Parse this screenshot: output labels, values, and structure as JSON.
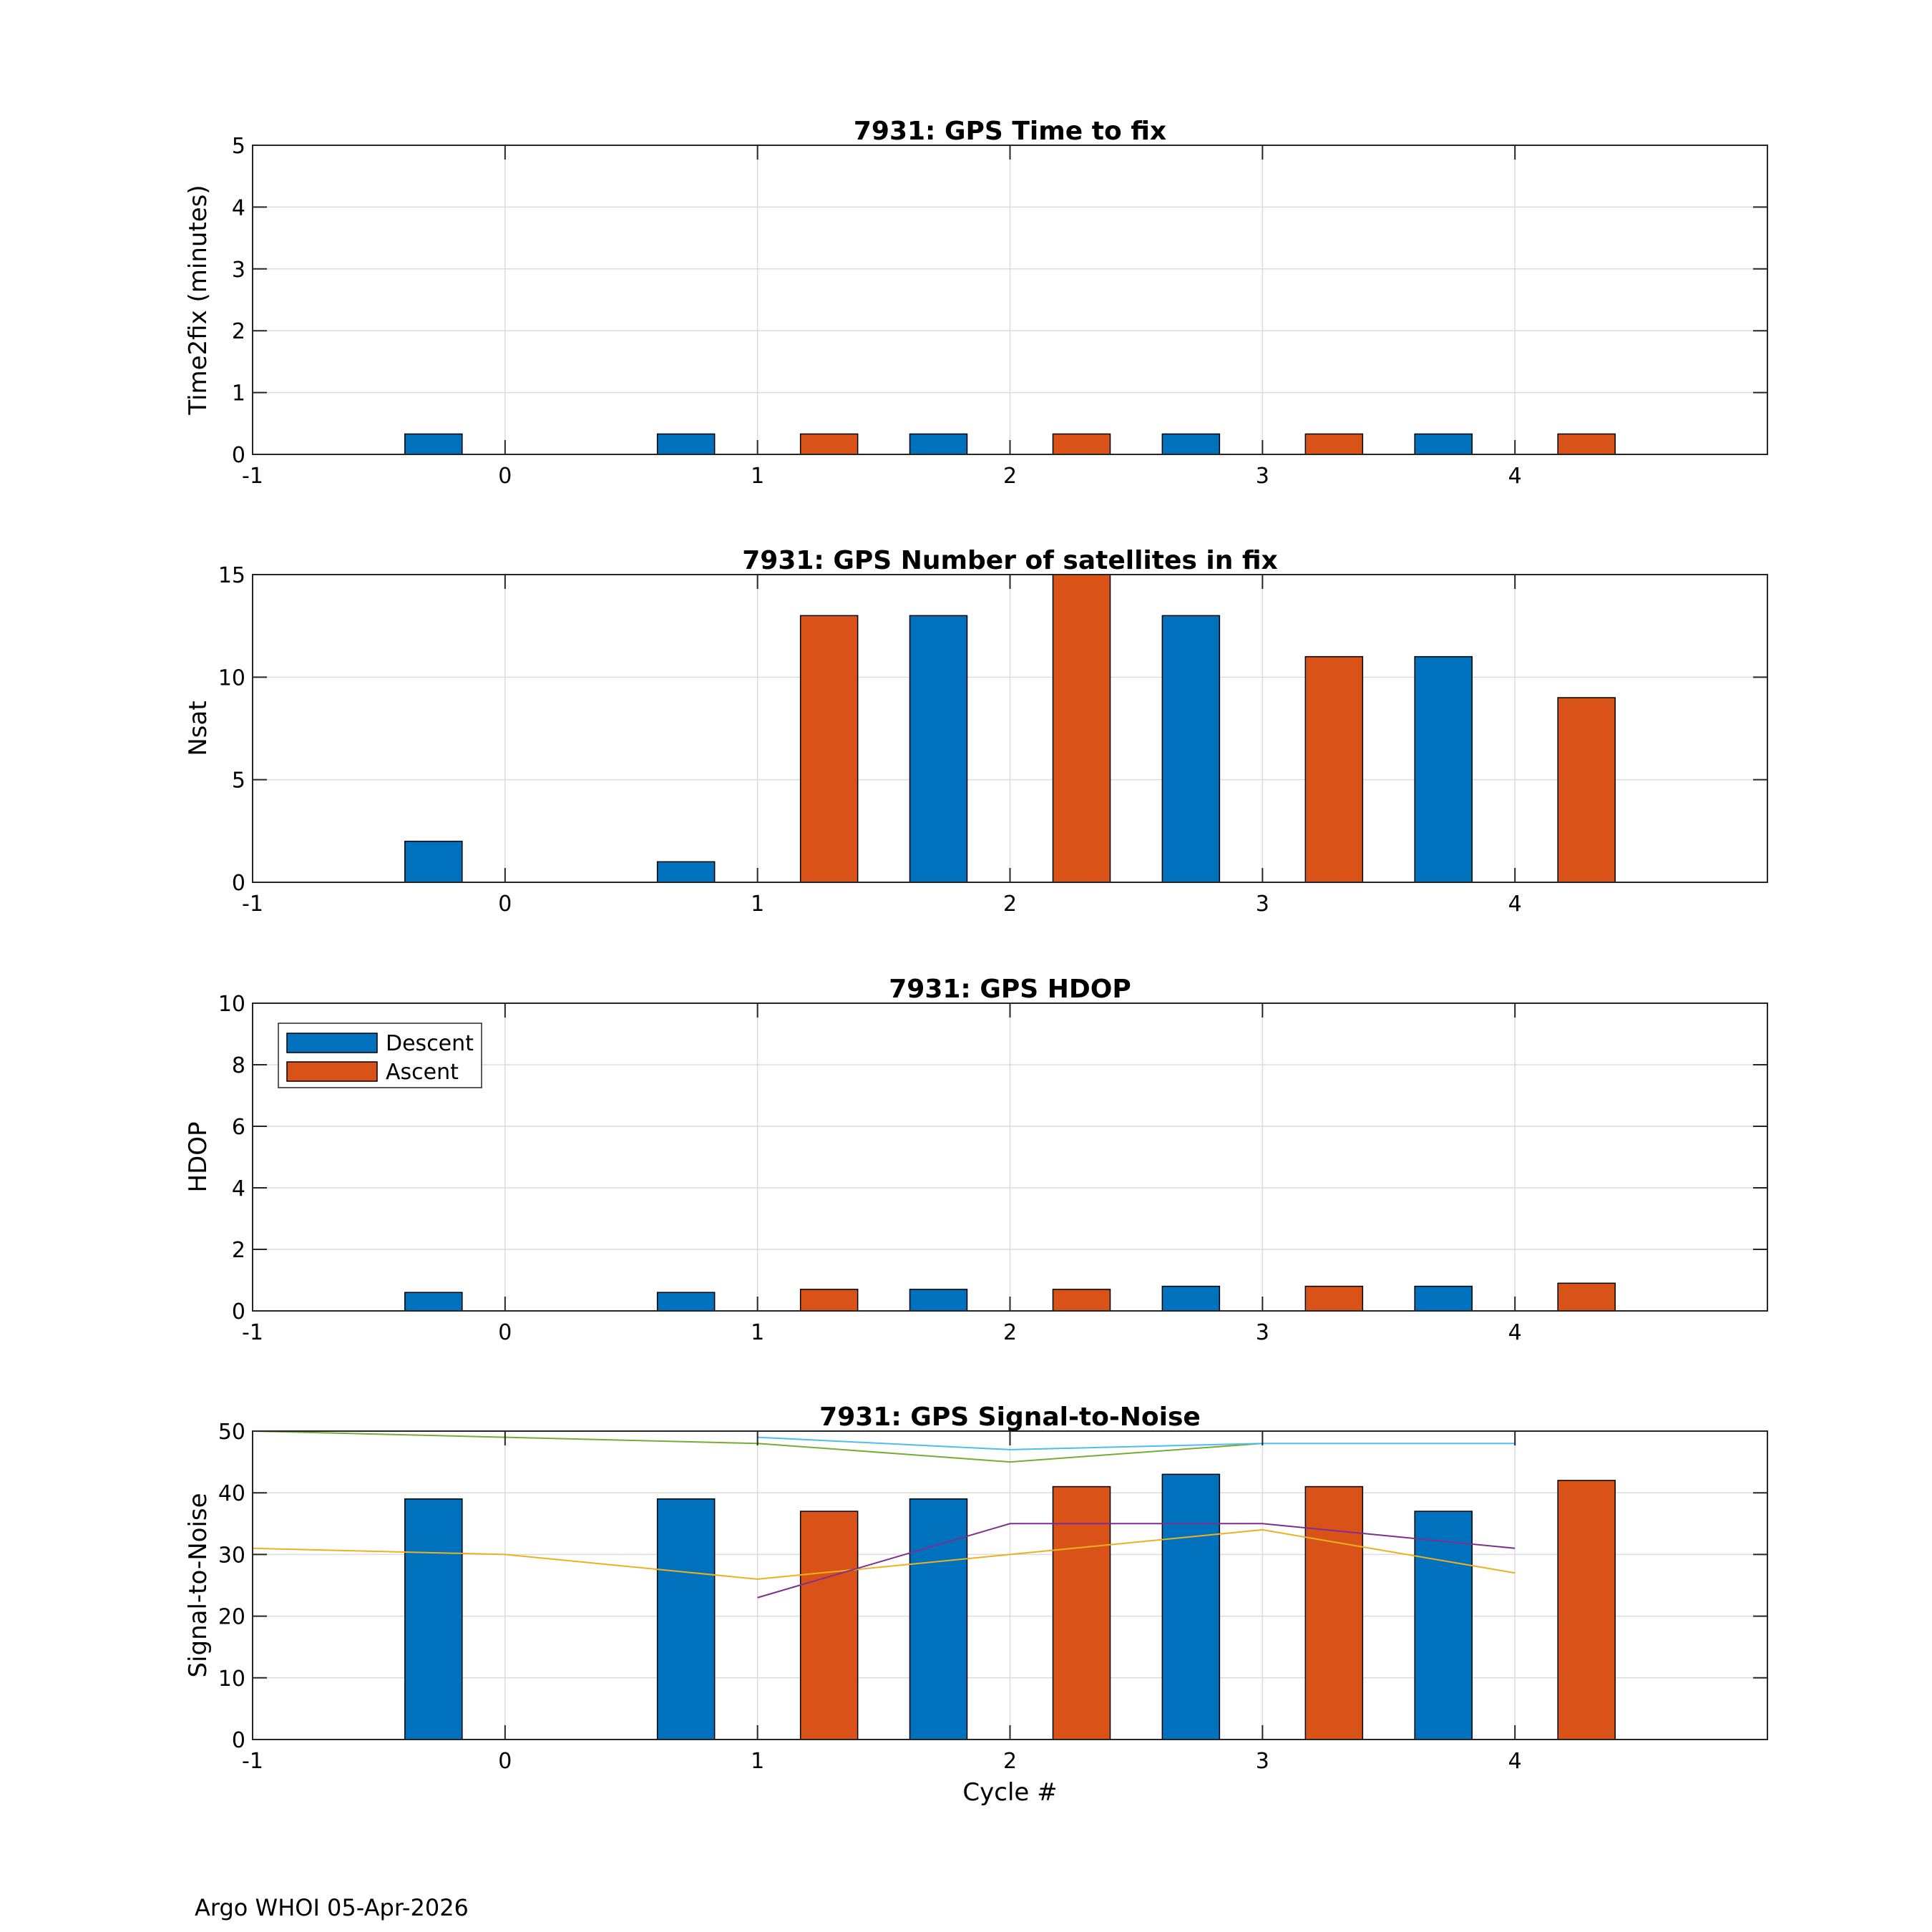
{
  "footer": "Argo WHOI 05-Apr-2026",
  "colors": {
    "descent": "#0072BD",
    "ascent": "#D95319",
    "snr_line_green": "#77AC30",
    "snr_line_cyan": "#4DBEEE",
    "snr_line_yellow": "#EDB120",
    "snr_line_purple": "#7E2F8E"
  },
  "chart_data": [
    {
      "type": "bar",
      "title": "7931: GPS Time to fix",
      "xlabel": "",
      "ylabel": "Time2fix (minutes)",
      "xlim": [
        -1,
        5
      ],
      "ylim": [
        0,
        5
      ],
      "xticks": [
        "-1",
        "0",
        "1",
        "2",
        "3",
        "4"
      ],
      "yticks": [
        "0",
        "1",
        "2",
        "3",
        "4",
        "5"
      ],
      "grid": true,
      "categories": [
        0,
        1,
        2,
        3,
        4
      ],
      "series": [
        {
          "name": "Descent",
          "values": [
            0.33,
            0.33,
            0.33,
            0.33,
            0.33
          ]
        },
        {
          "name": "Ascent",
          "values": [
            null,
            0.33,
            0.33,
            0.33,
            0.33
          ]
        }
      ]
    },
    {
      "type": "bar",
      "title": "7931: GPS Number of satellites in fix",
      "xlabel": "",
      "ylabel": "Nsat",
      "xlim": [
        -1,
        5
      ],
      "ylim": [
        0,
        15
      ],
      "xticks": [
        "-1",
        "0",
        "1",
        "2",
        "3",
        "4"
      ],
      "yticks": [
        "0",
        "5",
        "10",
        "15"
      ],
      "grid": true,
      "categories": [
        0,
        1,
        2,
        3,
        4
      ],
      "series": [
        {
          "name": "Descent",
          "values": [
            2,
            1,
            13,
            13,
            11
          ]
        },
        {
          "name": "Ascent",
          "values": [
            null,
            13,
            15,
            11,
            9
          ]
        }
      ]
    },
    {
      "type": "bar",
      "title": "7931: GPS HDOP",
      "xlabel": "",
      "ylabel": "HDOP",
      "xlim": [
        -1,
        5
      ],
      "ylim": [
        0,
        10
      ],
      "xticks": [
        "-1",
        "0",
        "1",
        "2",
        "3",
        "4"
      ],
      "yticks": [
        "0",
        "2",
        "4",
        "6",
        "8",
        "10"
      ],
      "grid": true,
      "legend": {
        "position": "top-left",
        "entries": [
          "Descent",
          "Ascent"
        ]
      },
      "categories": [
        0,
        1,
        2,
        3,
        4
      ],
      "series": [
        {
          "name": "Descent",
          "values": [
            0.6,
            0.6,
            0.7,
            0.8,
            0.8
          ]
        },
        {
          "name": "Ascent",
          "values": [
            null,
            0.7,
            0.7,
            0.8,
            0.9
          ]
        }
      ]
    },
    {
      "type": "bar",
      "title": "7931: GPS Signal-to-Noise",
      "xlabel": "Cycle #",
      "ylabel": "Signal-to-Noise",
      "xlim": [
        -1,
        5
      ],
      "ylim": [
        0,
        50
      ],
      "xticks": [
        "-1",
        "0",
        "1",
        "2",
        "3",
        "4"
      ],
      "yticks": [
        "0",
        "10",
        "20",
        "30",
        "40",
        "50"
      ],
      "grid": true,
      "categories": [
        0,
        1,
        2,
        3,
        4
      ],
      "series": [
        {
          "name": "Descent",
          "values": [
            39,
            39,
            39,
            43,
            37
          ]
        },
        {
          "name": "Ascent",
          "values": [
            null,
            37,
            41,
            41,
            42
          ]
        }
      ],
      "lines": [
        {
          "color": "#77AC30",
          "x": [
            -1,
            0,
            1,
            2,
            3
          ],
          "y": [
            50,
            49,
            48,
            45,
            48
          ]
        },
        {
          "color": "#4DBEEE",
          "x": [
            1,
            2,
            3,
            4
          ],
          "y": [
            49,
            47,
            48,
            48
          ]
        },
        {
          "color": "#EDB120",
          "x": [
            -1,
            0,
            1,
            2,
            3,
            4
          ],
          "y": [
            31,
            30,
            26,
            30,
            34,
            27
          ]
        },
        {
          "color": "#7E2F8E",
          "x": [
            1,
            2,
            3,
            4
          ],
          "y": [
            23,
            35,
            35,
            31
          ]
        }
      ]
    }
  ]
}
